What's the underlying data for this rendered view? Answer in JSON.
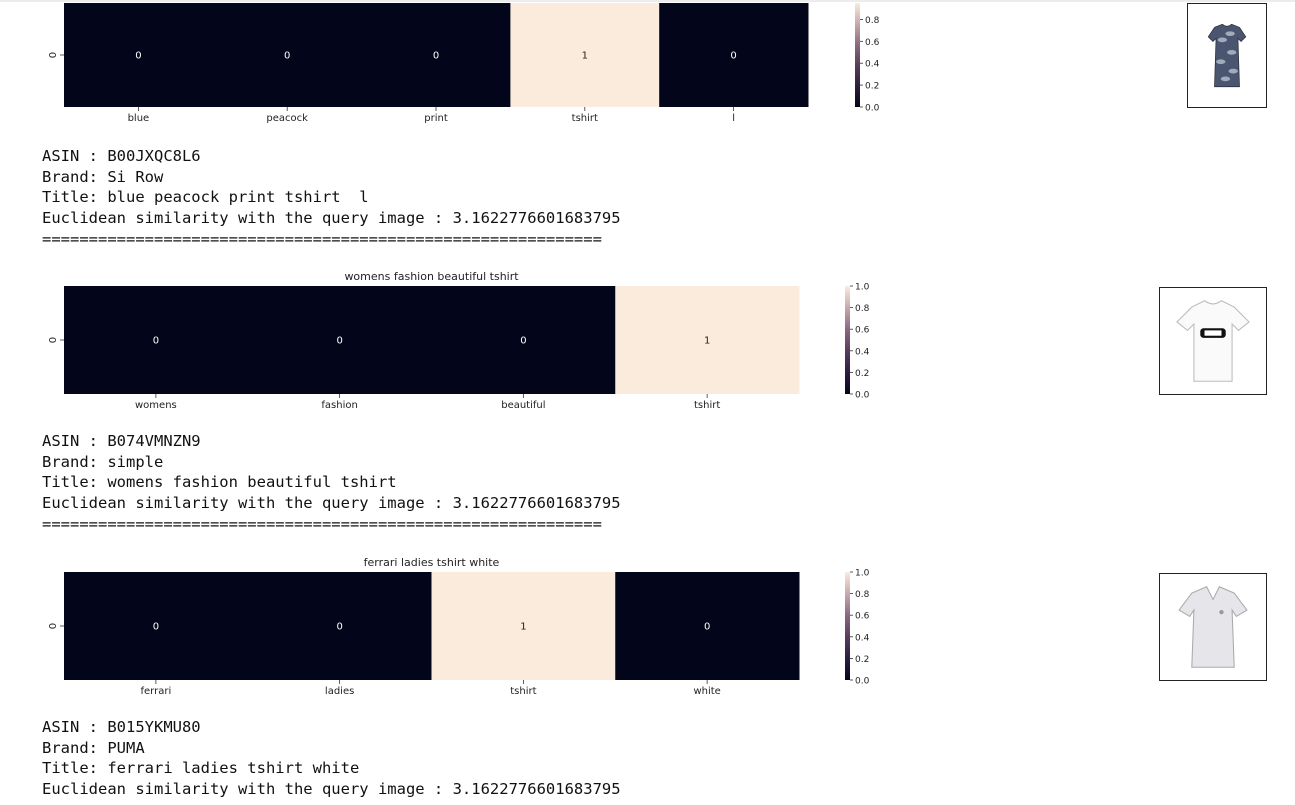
{
  "colors": {
    "dark": "#03051a",
    "light": "#faebdd",
    "text_on_dark": "#ffffff",
    "text_on_light": "#222222"
  },
  "chart_data": [
    {
      "type": "heatmap",
      "title": "",
      "y_tick_labels": [
        "0"
      ],
      "categories": [
        "blue",
        "peacock",
        "print",
        "tshirt",
        "l"
      ],
      "values": [
        0,
        0,
        0,
        1,
        0
      ],
      "colorbar": {
        "range": [
          0,
          0.95
        ],
        "ticks": [
          "0.0",
          "0.2",
          "0.4",
          "0.6",
          "0.8"
        ],
        "tick_values": [
          0,
          0.2,
          0.4,
          0.6,
          0.8
        ]
      },
      "product": {
        "asin": "ASIN : B00JXQC8L6",
        "brand": "Brand: Si Row",
        "title": "Title: blue peacock print tshirt  l",
        "similarity": "Euclidean similarity with the query image : 3.1622776601683795",
        "separator": "============================================================",
        "image_icon": "patterned-tshirt-icon"
      }
    },
    {
      "type": "heatmap",
      "title": "womens fashion beautiful tshirt",
      "y_tick_labels": [
        "0"
      ],
      "categories": [
        "womens",
        "fashion",
        "beautiful",
        "tshirt"
      ],
      "values": [
        0,
        0,
        0,
        1
      ],
      "colorbar": {
        "range": [
          0,
          1.0
        ],
        "ticks": [
          "0.0",
          "0.2",
          "0.4",
          "0.6",
          "0.8",
          "1.0"
        ],
        "tick_values": [
          0,
          0.2,
          0.4,
          0.6,
          0.8,
          1.0
        ]
      },
      "product": {
        "asin": "ASIN : B074VMNZN9",
        "brand": "Brand: simple",
        "title": "Title: womens fashion beautiful tshirt",
        "similarity": "Euclidean similarity with the query image : 3.1622776601683795",
        "separator": "============================================================",
        "image_icon": "white-tshirt-icon"
      }
    },
    {
      "type": "heatmap",
      "title": "ferrari ladies tshirt white",
      "y_tick_labels": [
        "0"
      ],
      "categories": [
        "ferrari",
        "ladies",
        "tshirt",
        "white"
      ],
      "values": [
        0,
        0,
        1,
        0
      ],
      "colorbar": {
        "range": [
          0,
          1.0
        ],
        "ticks": [
          "0.0",
          "0.2",
          "0.4",
          "0.6",
          "0.8",
          "1.0"
        ],
        "tick_values": [
          0,
          0.2,
          0.4,
          0.6,
          0.8,
          1.0
        ]
      },
      "product": {
        "asin": "ASIN : B015YKMU80",
        "brand": "Brand: PUMA",
        "title": "Title: ferrari ladies tshirt white",
        "similarity": "Euclidean similarity with the query image : 3.1622776601683795",
        "separator": "",
        "image_icon": "white-vneck-tshirt-icon"
      }
    }
  ]
}
